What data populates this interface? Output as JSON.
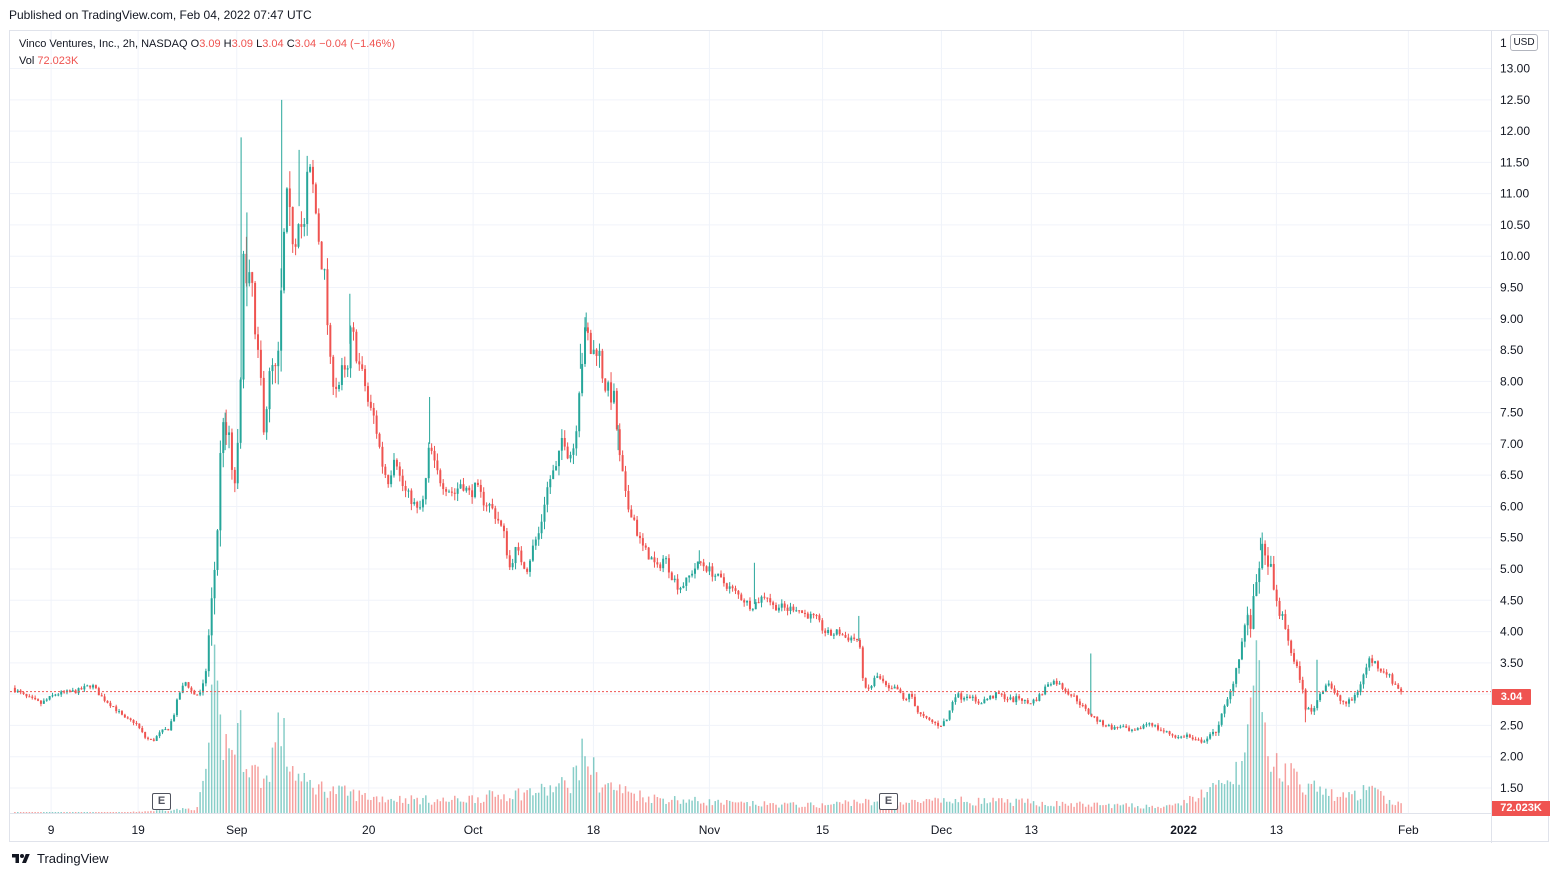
{
  "header": {
    "published": "Published on TradingView.com, Feb 04, 2022 07:47 UTC"
  },
  "legend": {
    "symbol": "Vinco Ventures, Inc., 2h, NASDAQ",
    "open_label": "O",
    "open": "3.09",
    "high_label": "H",
    "high": "3.09",
    "low_label": "L",
    "low": "3.04",
    "close_label": "C",
    "close": "3.04",
    "change": "−0.04 (−1.46%)",
    "vol_label": "Vol",
    "vol": "72.023K"
  },
  "currency": "USD",
  "axis_top_tick": "1",
  "last_price": "3.04",
  "last_volume": "72.023K",
  "earnings_label": "E",
  "footer": {
    "brand": "TradingView"
  },
  "colors": {
    "up": "#26a69a",
    "down": "#ef5350",
    "grid": "#f0f3fa",
    "last_line": "#ef5350"
  },
  "chart_data": {
    "type": "candlestick",
    "title": "Vinco Ventures, Inc., 2h, NASDAQ",
    "y_ticks": [
      "13.00",
      "12.50",
      "12.00",
      "11.50",
      "11.00",
      "10.50",
      "10.00",
      "9.50",
      "9.00",
      "8.50",
      "8.00",
      "7.50",
      "7.00",
      "6.50",
      "6.00",
      "5.50",
      "5.00",
      "4.50",
      "4.00",
      "3.50",
      "3.00",
      "2.50",
      "2.00",
      "1.50"
    ],
    "ylim": [
      1.1,
      13.6
    ],
    "x_ticks": [
      {
        "label": "9",
        "t": 0.027
      },
      {
        "label": "19",
        "t": 0.087
      },
      {
        "label": "Sep",
        "t": 0.155
      },
      {
        "label": "20",
        "t": 0.246
      },
      {
        "label": "Oct",
        "t": 0.318
      },
      {
        "label": "18",
        "t": 0.401
      },
      {
        "label": "Nov",
        "t": 0.481
      },
      {
        "label": "15",
        "t": 0.559
      },
      {
        "label": "Dec",
        "t": 0.641
      },
      {
        "label": "13",
        "t": 0.703
      },
      {
        "label": "2022",
        "t": 0.808,
        "bold": true
      },
      {
        "label": "13",
        "t": 0.872
      },
      {
        "label": "Feb",
        "t": 0.963
      }
    ],
    "price_path": [
      [
        0.0,
        3.1
      ],
      [
        0.01,
        2.95
      ],
      [
        0.02,
        2.85
      ],
      [
        0.03,
        3.0
      ],
      [
        0.045,
        3.05
      ],
      [
        0.055,
        3.15
      ],
      [
        0.062,
        2.95
      ],
      [
        0.07,
        2.8
      ],
      [
        0.078,
        2.6
      ],
      [
        0.085,
        2.55
      ],
      [
        0.092,
        2.3
      ],
      [
        0.097,
        2.25
      ],
      [
        0.103,
        2.4
      ],
      [
        0.108,
        2.45
      ],
      [
        0.112,
        2.7
      ],
      [
        0.115,
        3.0
      ],
      [
        0.12,
        3.2
      ],
      [
        0.125,
        3.0
      ],
      [
        0.13,
        3.0
      ],
      [
        0.133,
        3.2
      ],
      [
        0.136,
        4.0
      ],
      [
        0.139,
        4.8
      ],
      [
        0.141,
        5.4
      ],
      [
        0.143,
        6.2
      ],
      [
        0.145,
        7.8
      ],
      [
        0.147,
        6.9
      ],
      [
        0.15,
        7.2
      ],
      [
        0.152,
        6.3
      ],
      [
        0.155,
        6.5
      ],
      [
        0.158,
        8.0
      ],
      [
        0.16,
        10.8
      ],
      [
        0.162,
        9.2
      ],
      [
        0.165,
        9.8
      ],
      [
        0.168,
        8.5
      ],
      [
        0.171,
        8.2
      ],
      [
        0.174,
        7.2
      ],
      [
        0.177,
        8.0
      ],
      [
        0.18,
        8.2
      ],
      [
        0.183,
        8.0
      ],
      [
        0.186,
        9.5
      ],
      [
        0.189,
        10.9
      ],
      [
        0.192,
        10.5
      ],
      [
        0.195,
        10.2
      ],
      [
        0.198,
        10.8
      ],
      [
        0.201,
        10.2
      ],
      [
        0.204,
        11.4
      ],
      [
        0.207,
        11.2
      ],
      [
        0.21,
        10.6
      ],
      [
        0.213,
        10.0
      ],
      [
        0.216,
        9.6
      ],
      [
        0.219,
        8.3
      ],
      [
        0.222,
        8.0
      ],
      [
        0.225,
        7.9
      ],
      [
        0.228,
        8.2
      ],
      [
        0.231,
        8.0
      ],
      [
        0.234,
        8.9
      ],
      [
        0.237,
        8.5
      ],
      [
        0.24,
        8.2
      ],
      [
        0.243,
        8.0
      ],
      [
        0.246,
        7.6
      ],
      [
        0.25,
        7.4
      ],
      [
        0.253,
        7.0
      ],
      [
        0.256,
        6.6
      ],
      [
        0.26,
        6.4
      ],
      [
        0.264,
        6.9
      ],
      [
        0.268,
        6.4
      ],
      [
        0.272,
        6.2
      ],
      [
        0.276,
        6.1
      ],
      [
        0.28,
        5.9
      ],
      [
        0.284,
        6.1
      ],
      [
        0.288,
        7.0
      ],
      [
        0.292,
        6.6
      ],
      [
        0.296,
        6.4
      ],
      [
        0.3,
        6.3
      ],
      [
        0.305,
        6.2
      ],
      [
        0.31,
        6.4
      ],
      [
        0.315,
        6.2
      ],
      [
        0.32,
        6.3
      ],
      [
        0.325,
        6.1
      ],
      [
        0.33,
        6.0
      ],
      [
        0.335,
        5.8
      ],
      [
        0.34,
        5.5
      ],
      [
        0.343,
        5.0
      ],
      [
        0.347,
        5.3
      ],
      [
        0.35,
        5.2
      ],
      [
        0.355,
        5.0
      ],
      [
        0.36,
        5.4
      ],
      [
        0.364,
        5.6
      ],
      [
        0.368,
        6.2
      ],
      [
        0.372,
        6.5
      ],
      [
        0.376,
        6.6
      ],
      [
        0.38,
        7.2
      ],
      [
        0.384,
        6.8
      ],
      [
        0.388,
        7.0
      ],
      [
        0.392,
        8.2
      ],
      [
        0.396,
        8.8
      ],
      [
        0.4,
        8.4
      ],
      [
        0.404,
        8.6
      ],
      [
        0.408,
        8.0
      ],
      [
        0.412,
        7.8
      ],
      [
        0.416,
        7.7
      ],
      [
        0.418,
        6.9
      ],
      [
        0.421,
        6.5
      ],
      [
        0.424,
        6.0
      ],
      [
        0.428,
        5.9
      ],
      [
        0.432,
        5.5
      ],
      [
        0.436,
        5.3
      ],
      [
        0.44,
        5.2
      ],
      [
        0.445,
        5.0
      ],
      [
        0.45,
        5.2
      ],
      [
        0.455,
        4.9
      ],
      [
        0.46,
        4.7
      ],
      [
        0.465,
        4.8
      ],
      [
        0.47,
        5.0
      ],
      [
        0.475,
        5.1
      ],
      [
        0.48,
        5.0
      ],
      [
        0.485,
        4.9
      ],
      [
        0.49,
        4.8
      ],
      [
        0.495,
        4.7
      ],
      [
        0.5,
        4.6
      ],
      [
        0.505,
        4.5
      ],
      [
        0.51,
        4.4
      ],
      [
        0.515,
        4.5
      ],
      [
        0.52,
        4.6
      ],
      [
        0.525,
        4.4
      ],
      [
        0.53,
        4.4
      ],
      [
        0.535,
        4.35
      ],
      [
        0.54,
        4.4
      ],
      [
        0.545,
        4.3
      ],
      [
        0.55,
        4.25
      ],
      [
        0.555,
        4.2
      ],
      [
        0.56,
        4.0
      ],
      [
        0.565,
        3.95
      ],
      [
        0.57,
        4.0
      ],
      [
        0.575,
        3.9
      ],
      [
        0.58,
        3.9
      ],
      [
        0.584,
        3.85
      ],
      [
        0.588,
        3.05
      ],
      [
        0.592,
        3.1
      ],
      [
        0.596,
        3.3
      ],
      [
        0.6,
        3.2
      ],
      [
        0.605,
        3.05
      ],
      [
        0.61,
        3.1
      ],
      [
        0.615,
        2.9
      ],
      [
        0.62,
        3.0
      ],
      [
        0.625,
        2.7
      ],
      [
        0.63,
        2.6
      ],
      [
        0.635,
        2.55
      ],
      [
        0.64,
        2.5
      ],
      [
        0.645,
        2.6
      ],
      [
        0.65,
        3.0
      ],
      [
        0.655,
        2.95
      ],
      [
        0.66,
        3.0
      ],
      [
        0.665,
        2.85
      ],
      [
        0.67,
        2.9
      ],
      [
        0.675,
        2.95
      ],
      [
        0.68,
        3.0
      ],
      [
        0.685,
        2.95
      ],
      [
        0.69,
        2.9
      ],
      [
        0.695,
        2.95
      ],
      [
        0.7,
        2.85
      ],
      [
        0.705,
        2.9
      ],
      [
        0.71,
        3.0
      ],
      [
        0.715,
        3.2
      ],
      [
        0.72,
        3.2
      ],
      [
        0.725,
        3.1
      ],
      [
        0.73,
        3.0
      ],
      [
        0.735,
        2.9
      ],
      [
        0.74,
        2.75
      ],
      [
        0.745,
        2.65
      ],
      [
        0.75,
        2.55
      ],
      [
        0.755,
        2.5
      ],
      [
        0.76,
        2.45
      ],
      [
        0.765,
        2.5
      ],
      [
        0.77,
        2.4
      ],
      [
        0.775,
        2.4
      ],
      [
        0.78,
        2.5
      ],
      [
        0.785,
        2.55
      ],
      [
        0.79,
        2.45
      ],
      [
        0.795,
        2.4
      ],
      [
        0.8,
        2.35
      ],
      [
        0.805,
        2.3
      ],
      [
        0.81,
        2.35
      ],
      [
        0.815,
        2.25
      ],
      [
        0.82,
        2.25
      ],
      [
        0.825,
        2.3
      ],
      [
        0.83,
        2.4
      ],
      [
        0.835,
        2.7
      ],
      [
        0.84,
        3.0
      ],
      [
        0.845,
        3.5
      ],
      [
        0.848,
        3.8
      ],
      [
        0.851,
        4.2
      ],
      [
        0.855,
        4.1
      ],
      [
        0.858,
        4.8
      ],
      [
        0.861,
        5.3
      ],
      [
        0.864,
        5.1
      ],
      [
        0.867,
        5.2
      ],
      [
        0.87,
        4.6
      ],
      [
        0.873,
        4.4
      ],
      [
        0.876,
        4.2
      ],
      [
        0.88,
        3.9
      ],
      [
        0.884,
        3.5
      ],
      [
        0.888,
        3.3
      ],
      [
        0.892,
        2.8
      ],
      [
        0.896,
        2.7
      ],
      [
        0.9,
        2.9
      ],
      [
        0.904,
        3.1
      ],
      [
        0.908,
        3.2
      ],
      [
        0.912,
        3.0
      ],
      [
        0.916,
        2.9
      ],
      [
        0.92,
        2.85
      ],
      [
        0.924,
        2.9
      ],
      [
        0.928,
        3.05
      ],
      [
        0.932,
        3.3
      ],
      [
        0.936,
        3.55
      ],
      [
        0.94,
        3.5
      ],
      [
        0.944,
        3.4
      ],
      [
        0.948,
        3.35
      ],
      [
        0.952,
        3.2
      ],
      [
        0.956,
        3.1
      ],
      [
        0.958,
        3.04
      ]
    ],
    "spikes": [
      [
        0.147,
        7.5
      ],
      [
        0.158,
        11.9
      ],
      [
        0.162,
        10.7
      ],
      [
        0.186,
        12.5
      ],
      [
        0.198,
        11.7
      ],
      [
        0.233,
        9.4
      ],
      [
        0.396,
        9.1
      ],
      [
        0.392,
        8.6
      ],
      [
        0.288,
        7.75
      ],
      [
        0.418,
        7.3
      ],
      [
        0.861,
        5.5
      ],
      [
        0.852,
        4.4
      ],
      [
        0.892,
        2.55
      ],
      [
        0.9,
        3.55
      ],
      [
        0.744,
        3.65
      ],
      [
        0.584,
        4.25
      ],
      [
        0.512,
        5.1
      ],
      [
        0.474,
        5.3
      ]
    ],
    "volume_path": [
      [
        0.0,
        0.005
      ],
      [
        0.08,
        0.005
      ],
      [
        0.128,
        0.03
      ],
      [
        0.135,
        0.35
      ],
      [
        0.14,
        0.85
      ],
      [
        0.143,
        0.55
      ],
      [
        0.15,
        0.4
      ],
      [
        0.157,
        0.55
      ],
      [
        0.16,
        0.4
      ],
      [
        0.165,
        0.3
      ],
      [
        0.175,
        0.2
      ],
      [
        0.185,
        0.6
      ],
      [
        0.19,
        0.35
      ],
      [
        0.2,
        0.2
      ],
      [
        0.22,
        0.15
      ],
      [
        0.25,
        0.1
      ],
      [
        0.3,
        0.08
      ],
      [
        0.34,
        0.12
      ],
      [
        0.37,
        0.15
      ],
      [
        0.385,
        0.2
      ],
      [
        0.395,
        0.4
      ],
      [
        0.405,
        0.2
      ],
      [
        0.42,
        0.15
      ],
      [
        0.44,
        0.1
      ],
      [
        0.5,
        0.06
      ],
      [
        0.56,
        0.05
      ],
      [
        0.585,
        0.08
      ],
      [
        0.595,
        0.06
      ],
      [
        0.65,
        0.08
      ],
      [
        0.7,
        0.07
      ],
      [
        0.72,
        0.06
      ],
      [
        0.8,
        0.04
      ],
      [
        0.84,
        0.2
      ],
      [
        0.85,
        0.35
      ],
      [
        0.858,
        0.9
      ],
      [
        0.865,
        0.4
      ],
      [
        0.875,
        0.3
      ],
      [
        0.89,
        0.2
      ],
      [
        0.9,
        0.15
      ],
      [
        0.92,
        0.1
      ],
      [
        0.935,
        0.15
      ],
      [
        0.958,
        0.05
      ]
    ]
  }
}
